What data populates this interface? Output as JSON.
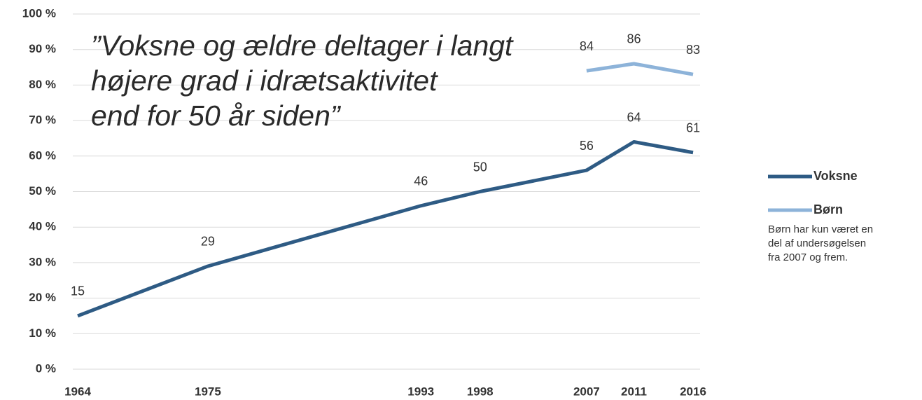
{
  "chart_data": {
    "type": "line",
    "annotation": [
      "”Voksne og ældre deltager i langt",
      "højere grad i  idrætsaktivitet",
      "end for 50 år siden”"
    ],
    "note": "Børn har kun været en del af undersøgelsen fra 2007 og frem.",
    "x": [
      1964,
      1975,
      1993,
      1998,
      2007,
      2011,
      2016
    ],
    "xlim": [
      1964,
      2016
    ],
    "xticks": [
      1964,
      1975,
      1993,
      1998,
      2007,
      2011,
      2016
    ],
    "ylim": [
      0,
      100
    ],
    "yticks": [
      {
        "value": 0,
        "label": "0 %"
      },
      {
        "value": 10,
        "label": "10 %"
      },
      {
        "value": 20,
        "label": "20 %"
      },
      {
        "value": 30,
        "label": "30 %"
      },
      {
        "value": 40,
        "label": "40 %"
      },
      {
        "value": 50,
        "label": "50 %"
      },
      {
        "value": 60,
        "label": "60 %"
      },
      {
        "value": 70,
        "label": "70 %"
      },
      {
        "value": 80,
        "label": "80 %"
      },
      {
        "value": 90,
        "label": "90 %"
      },
      {
        "value": 100,
        "label": "100 %"
      }
    ],
    "grid": true,
    "legend": "right",
    "series": [
      {
        "name": "Voksne",
        "color": "#2e5b84",
        "values": [
          15,
          29,
          46,
          50,
          56,
          64,
          61
        ]
      },
      {
        "name": "Børn",
        "color": "#8db3d9",
        "values": [
          null,
          null,
          null,
          null,
          84,
          86,
          83
        ]
      }
    ]
  }
}
